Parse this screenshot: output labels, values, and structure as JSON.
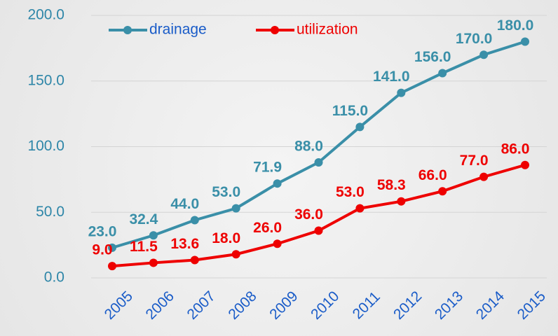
{
  "chart_data": {
    "type": "line",
    "categories": [
      "2005",
      "2006",
      "2007",
      "2008",
      "2009",
      "2010",
      "2011",
      "2012",
      "2013",
      "2014",
      "2015"
    ],
    "series": [
      {
        "name": "drainage",
        "color": "#3a8fa8",
        "values": [
          23.0,
          32.4,
          44.0,
          53.0,
          71.9,
          88.0,
          115.0,
          141.0,
          156.0,
          170.0,
          180.0
        ],
        "value_labels": [
          "23.0",
          "32.4",
          "44.0",
          "53.0",
          "71.9",
          "88.0",
          "115.0",
          "141.0",
          "156.0",
          "170.0",
          "180.0"
        ]
      },
      {
        "name": "utilization",
        "color": "#ee0000",
        "values": [
          9.0,
          11.5,
          13.6,
          18.0,
          26.0,
          36.0,
          53.0,
          58.3,
          66.0,
          77.0,
          86.0
        ],
        "value_labels": [
          "9.0",
          "11.5",
          "13.6",
          "18.0",
          "26.0",
          "36.0",
          "53.0",
          "58.3",
          "66.0",
          "77.0",
          "86.0"
        ]
      }
    ],
    "ylim": [
      0,
      200
    ],
    "yticks": [
      {
        "value": 0,
        "label": "0.0"
      },
      {
        "value": 50,
        "label": "50.0"
      },
      {
        "value": 100,
        "label": "100.0"
      },
      {
        "value": 150,
        "label": "150.0"
      },
      {
        "value": 200,
        "label": "200.0"
      }
    ],
    "grid": true,
    "legend": "top"
  }
}
